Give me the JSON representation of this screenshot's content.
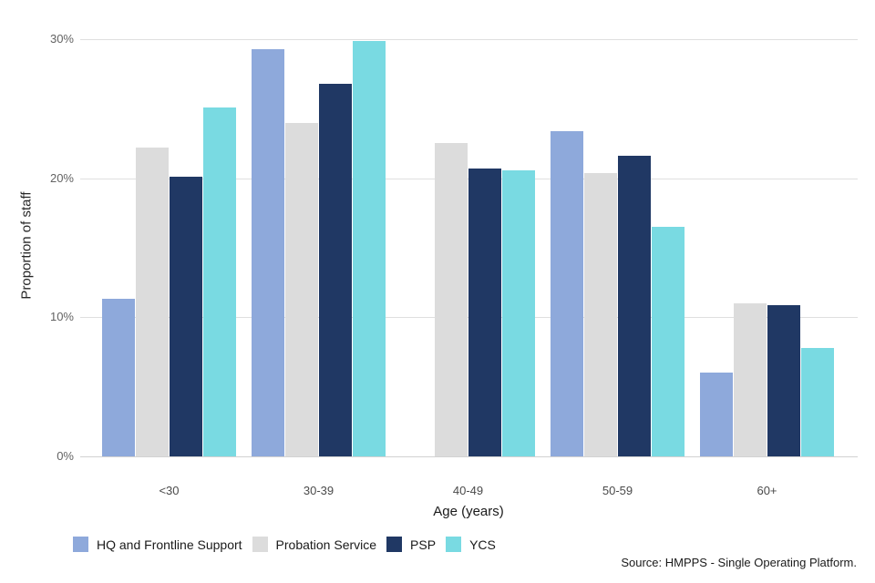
{
  "chart_data": {
    "type": "bar",
    "title": "",
    "categories": [
      "<30",
      "30-39",
      "40-49",
      "50-59",
      "60+"
    ],
    "series": [
      {
        "name": "HQ and Frontline Support",
        "color": "#8ea9db",
        "values": [
          11.3,
          29.3,
          null,
          23.4,
          6.0
        ]
      },
      {
        "name": "Probation Service",
        "color": "#dcdcdc",
        "values": [
          22.2,
          24.0,
          22.5,
          20.4,
          11.0
        ]
      },
      {
        "name": "PSP",
        "color": "#203864",
        "values": [
          20.1,
          26.8,
          20.7,
          21.6,
          10.9
        ]
      },
      {
        "name": "YCS",
        "color": "#79dae2",
        "values": [
          25.1,
          29.9,
          20.6,
          16.5,
          7.8
        ]
      }
    ],
    "xlabel": "Age (years)",
    "ylabel": "Proportion of staff",
    "ylim": [
      0,
      30
    ],
    "yticks": [
      {
        "value": 0,
        "label": "0%"
      },
      {
        "value": 10,
        "label": "10%"
      },
      {
        "value": 20,
        "label": "20%"
      },
      {
        "value": 30,
        "label": "30%"
      }
    ],
    "grid": true,
    "legend_position": "bottom-left",
    "note": "no HQ and Frontline Support bar shown for 40-49"
  },
  "source_note": "Source: HMPPS - Single Operating Platform."
}
